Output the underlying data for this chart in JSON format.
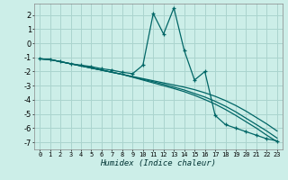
{
  "title": "",
  "xlabel": "Humidex (Indice chaleur)",
  "background_color": "#cceee8",
  "grid_color": "#aad4ce",
  "line_color": "#006666",
  "xlim": [
    -0.5,
    23.5
  ],
  "ylim": [
    -7.5,
    2.8
  ],
  "xticks": [
    0,
    1,
    2,
    3,
    4,
    5,
    6,
    7,
    8,
    9,
    10,
    11,
    12,
    13,
    14,
    15,
    16,
    17,
    18,
    19,
    20,
    21,
    22,
    23
  ],
  "yticks": [
    -7,
    -6,
    -5,
    -4,
    -3,
    -2,
    -1,
    0,
    1,
    2
  ],
  "series_main": [
    -1.1,
    -1.15,
    -1.3,
    -1.45,
    -1.55,
    -1.65,
    -1.8,
    -1.9,
    -2.05,
    -2.15,
    -1.55,
    2.1,
    0.65,
    2.5,
    -0.5,
    -2.6,
    -2.0,
    -5.1,
    -5.75,
    -6.0,
    -6.25,
    -6.5,
    -6.75,
    -6.9
  ],
  "series_lines": [
    [
      -1.1,
      -1.15,
      -1.3,
      -1.45,
      -1.6,
      -1.75,
      -1.9,
      -2.05,
      -2.2,
      -2.35,
      -2.5,
      -2.65,
      -2.8,
      -2.95,
      -3.1,
      -3.28,
      -3.5,
      -3.75,
      -4.05,
      -4.4,
      -4.8,
      -5.25,
      -5.7,
      -6.2
    ],
    [
      -1.1,
      -1.15,
      -1.3,
      -1.45,
      -1.6,
      -1.75,
      -1.9,
      -2.05,
      -2.2,
      -2.38,
      -2.55,
      -2.72,
      -2.9,
      -3.1,
      -3.3,
      -3.55,
      -3.8,
      -4.1,
      -4.45,
      -4.85,
      -5.3,
      -5.75,
      -6.2,
      -6.7
    ],
    [
      -1.1,
      -1.15,
      -1.3,
      -1.45,
      -1.6,
      -1.75,
      -1.9,
      -2.05,
      -2.2,
      -2.4,
      -2.6,
      -2.8,
      -3.0,
      -3.2,
      -3.42,
      -3.68,
      -3.98,
      -4.3,
      -4.68,
      -5.1,
      -5.55,
      -6.0,
      -6.5,
      -6.95
    ]
  ]
}
